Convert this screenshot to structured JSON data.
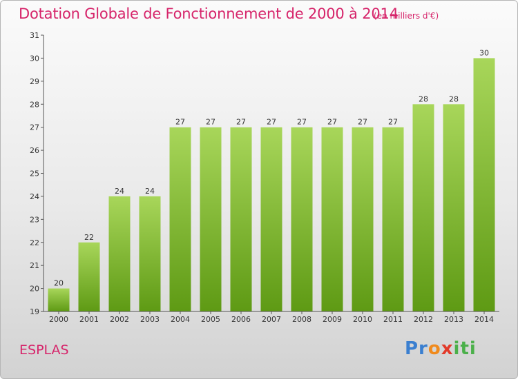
{
  "title": "Dotation Globale de Fonctionnement de 2000 à 2014",
  "subtitle": "(en milliers d'€)",
  "commune": "ESPLAS",
  "logo": {
    "text": "Proxiti",
    "parts": [
      "Pr",
      "o",
      "x",
      "iti"
    ]
  },
  "colors": {
    "title": "#d6246a",
    "bar_top": "#a8d65a",
    "bar_bottom": "#5e9a14",
    "axis": "#555555"
  },
  "chart_data": {
    "type": "bar",
    "categories": [
      "2000",
      "2001",
      "2002",
      "2003",
      "2004",
      "2005",
      "2006",
      "2007",
      "2008",
      "2009",
      "2010",
      "2011",
      "2012",
      "2013",
      "2014"
    ],
    "values": [
      20,
      22,
      24,
      24,
      27,
      27,
      27,
      27,
      27,
      27,
      27,
      27,
      28,
      28,
      30
    ],
    "title": "Dotation Globale de Fonctionnement de 2000 à 2014",
    "subtitle": "(en milliers d'€)",
    "xlabel": "",
    "ylabel": "",
    "ylim": [
      19,
      31
    ],
    "yticks": [
      19,
      20,
      21,
      22,
      23,
      24,
      25,
      26,
      27,
      28,
      29,
      30,
      31
    ],
    "grid": false,
    "legend": "none"
  }
}
